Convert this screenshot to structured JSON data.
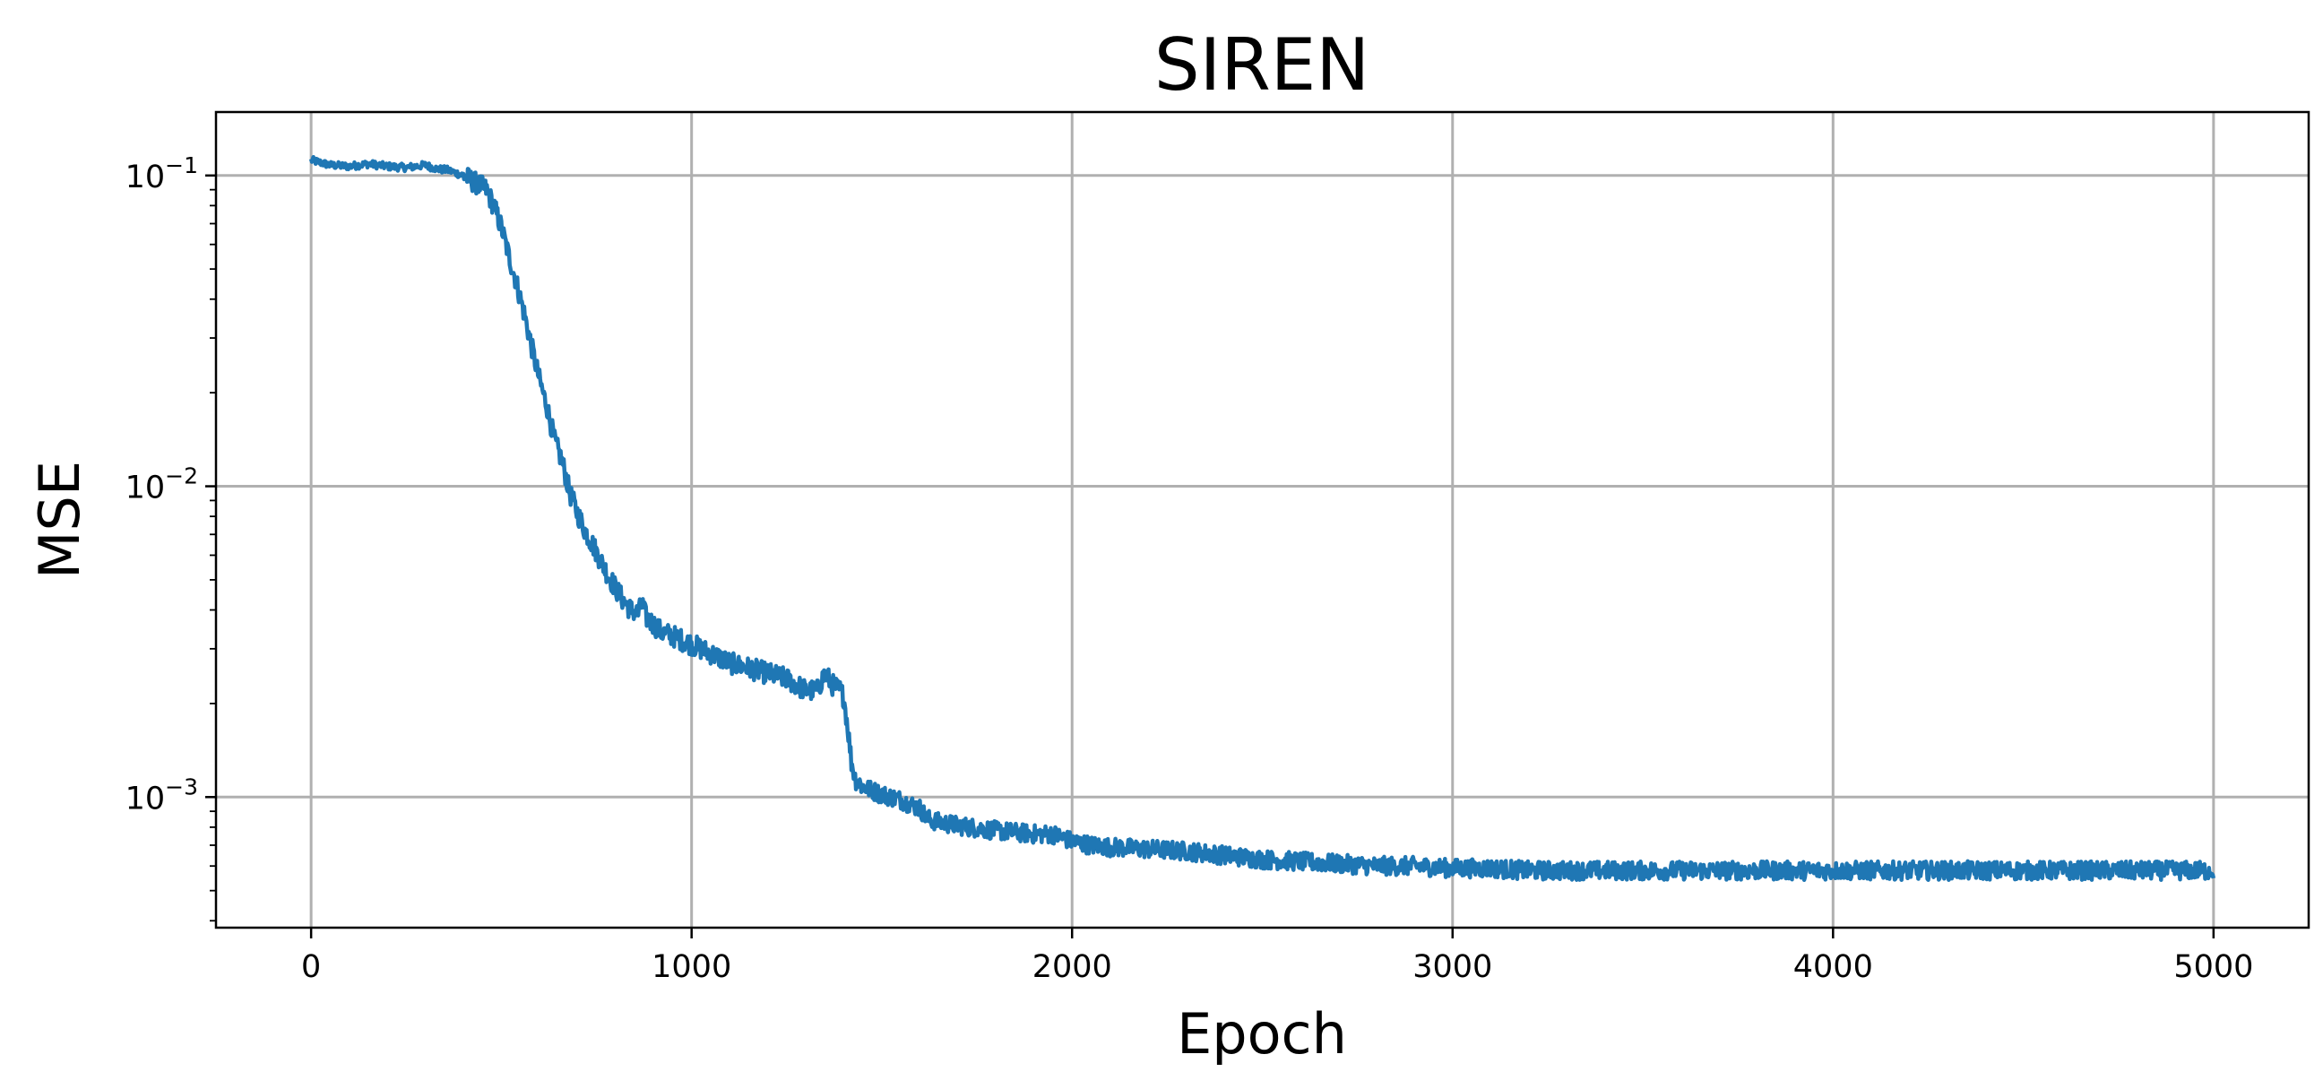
{
  "chart_data": {
    "type": "line",
    "title": "SIREN",
    "xlabel": "Epoch",
    "ylabel": "MSE",
    "yscale": "log",
    "xlim": [
      -250,
      5250
    ],
    "ylim": [
      0.00038,
      0.16
    ],
    "grid": true,
    "x_ticks": [
      0,
      1000,
      2000,
      3000,
      4000,
      5000
    ],
    "x_tick_labels": [
      "0",
      "1000",
      "2000",
      "3000",
      "4000",
      "5000"
    ],
    "y_ticks": [
      0.001,
      0.01,
      0.1
    ],
    "y_tick_labels": [
      {
        "base": "10",
        "exp": "−3"
      },
      {
        "base": "10",
        "exp": "−2"
      },
      {
        "base": "10",
        "exp": "−1"
      }
    ],
    "color": "#1f77b4",
    "series": [
      {
        "x": [
          0,
          50,
          100,
          150,
          200,
          250,
          300,
          330,
          360,
          400,
          430,
          460,
          480,
          500,
          520,
          540,
          560,
          580,
          600,
          620,
          640,
          660,
          680,
          700,
          720,
          740,
          760,
          780,
          800,
          820,
          840,
          860,
          870,
          880,
          900,
          920,
          950,
          1000,
          1050,
          1100,
          1150,
          1200,
          1250,
          1300,
          1330,
          1350,
          1370,
          1390,
          1400,
          1410,
          1420,
          1430,
          1450,
          1500,
          1550,
          1600,
          1620,
          1650,
          1700,
          1800,
          1900,
          1950,
          2000,
          2050,
          2100,
          2200,
          2300,
          2400,
          2500,
          2600,
          2700,
          2800,
          2900,
          3000,
          3100,
          3200,
          3300,
          3400,
          3500,
          3600,
          3700,
          3800,
          3900,
          4000,
          4100,
          4200,
          4300,
          4400,
          4500,
          4600,
          4700,
          4800,
          4900,
          5000
        ],
        "y": [
          0.112,
          0.108,
          0.107,
          0.109,
          0.107,
          0.106,
          0.108,
          0.105,
          0.104,
          0.1,
          0.095,
          0.09,
          0.08,
          0.068,
          0.055,
          0.045,
          0.036,
          0.028,
          0.022,
          0.018,
          0.014,
          0.012,
          0.0095,
          0.0082,
          0.0072,
          0.0065,
          0.0058,
          0.0052,
          0.0047,
          0.0043,
          0.004,
          0.0039,
          0.0042,
          0.0038,
          0.0036,
          0.0034,
          0.0033,
          0.0031,
          0.0029,
          0.0027,
          0.0026,
          0.0025,
          0.0024,
          0.0022,
          0.0022,
          0.0025,
          0.0023,
          0.0022,
          0.0021,
          0.0017,
          0.0013,
          0.00115,
          0.00108,
          0.00102,
          0.00098,
          0.00092,
          0.00085,
          0.00083,
          0.00081,
          0.00078,
          0.00076,
          0.00076,
          0.00072,
          0.0007,
          0.00069,
          0.00068,
          0.00067,
          0.00065,
          0.00063,
          0.00062,
          0.00061,
          0.0006,
          0.0006,
          0.00059,
          0.00059,
          0.00058,
          0.00058,
          0.00058,
          0.00058,
          0.00058,
          0.00058,
          0.00058,
          0.00058,
          0.00058,
          0.00058,
          0.00058,
          0.00058,
          0.00058,
          0.00058,
          0.00058,
          0.00058,
          0.00058,
          0.00058,
          0.00058
        ]
      }
    ]
  }
}
